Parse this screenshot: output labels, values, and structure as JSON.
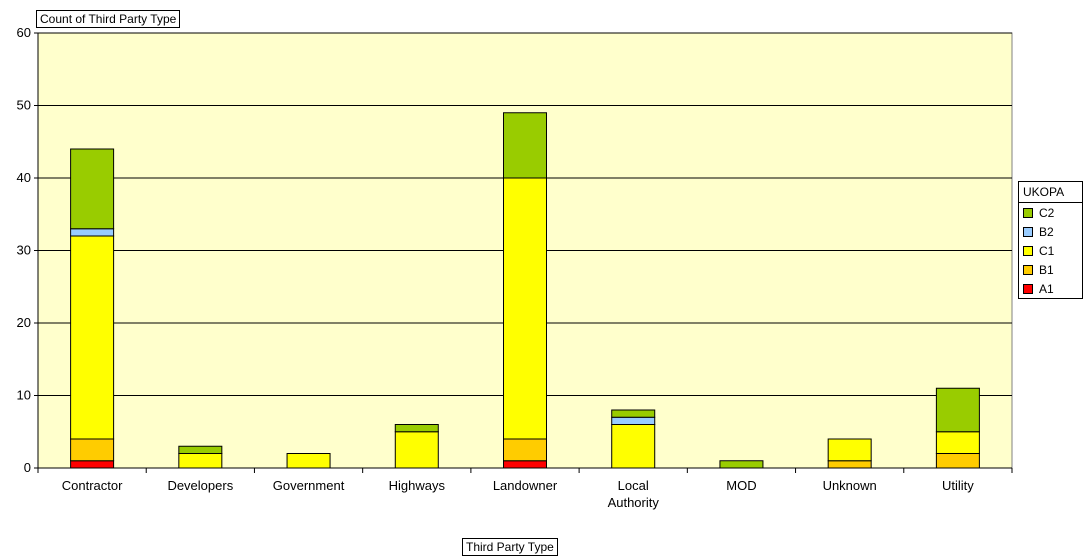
{
  "data_field_button": "Count of  Third Party Type",
  "axis_field_button": "Third Party Type",
  "chart_data": {
    "type": "bar",
    "stacked": true,
    "categories": [
      "Contractor",
      "Developers",
      "Government",
      "Highways",
      "Landowner",
      "Local Authority",
      "MOD",
      "Unknown",
      "Utility"
    ],
    "series": [
      {
        "name": "A1",
        "color": "#ff0000",
        "values": [
          1,
          0,
          0,
          0,
          1,
          0,
          0,
          0,
          0
        ]
      },
      {
        "name": "B1",
        "color": "#ffcc00",
        "values": [
          3,
          0,
          0,
          0,
          3,
          0,
          0,
          1,
          2
        ]
      },
      {
        "name": "C1",
        "color": "#ffff00",
        "values": [
          28,
          2,
          2,
          5,
          36,
          6,
          0,
          3,
          3
        ]
      },
      {
        "name": "B2",
        "color": "#99ccff",
        "values": [
          1,
          0,
          0,
          0,
          0,
          1,
          0,
          0,
          0
        ]
      },
      {
        "name": "C2",
        "color": "#99cc00",
        "values": [
          11,
          1,
          0,
          1,
          9,
          1,
          1,
          0,
          6
        ]
      }
    ],
    "ylim": [
      0,
      60
    ],
    "yticks": [
      0,
      10,
      20,
      30,
      40,
      50,
      60
    ],
    "grid": true,
    "plot_background": "#ffffcc",
    "legend": {
      "title": "UKOPA",
      "placement": "right",
      "order": [
        "C2",
        "B2",
        "C1",
        "B1",
        "A1"
      ]
    }
  }
}
